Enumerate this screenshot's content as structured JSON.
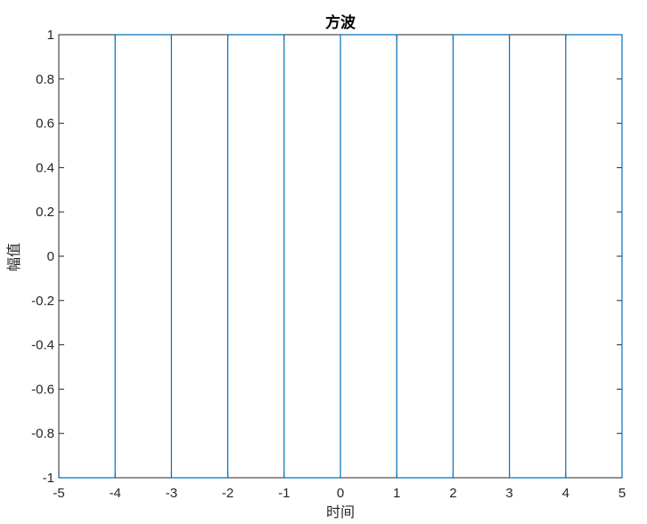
{
  "chart_data": {
    "type": "line",
    "title": "方波",
    "xlabel": "时间",
    "ylabel": "幅值",
    "xlim": [
      -5,
      5
    ],
    "ylim": [
      -1,
      1
    ],
    "xticks": [
      "-5",
      "-4",
      "-3",
      "-2",
      "-1",
      "0",
      "1",
      "2",
      "3",
      "4",
      "5"
    ],
    "yticks": [
      "1",
      "0.8",
      "0.6",
      "0.4",
      "0.2",
      "0",
      "-0.2",
      "-0.4",
      "-0.6",
      "-0.8",
      "-1"
    ],
    "grid": false,
    "series": [
      {
        "color": "#0072BD",
        "x": [
          -5,
          -4,
          -4,
          -3,
          -3,
          -2,
          -2,
          -1,
          -1,
          0,
          0,
          1,
          1,
          2,
          2,
          3,
          3,
          4,
          4,
          5,
          5
        ],
        "y": [
          -1,
          -1,
          1,
          1,
          -1,
          -1,
          1,
          1,
          -1,
          -1,
          1,
          1,
          -1,
          -1,
          1,
          1,
          -1,
          -1,
          1,
          1,
          -1
        ]
      }
    ]
  }
}
